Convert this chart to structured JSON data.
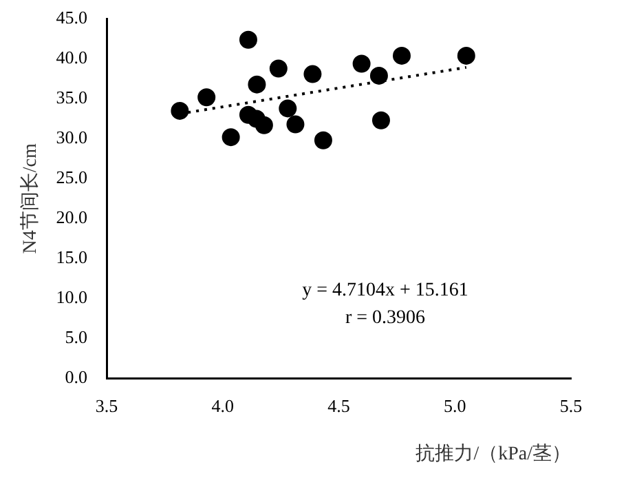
{
  "chart_data": {
    "type": "scatter",
    "xlabel": "抗推力/（kPa/茎）",
    "ylabel": "N4节间长/cm",
    "xlim": [
      3.5,
      5.5
    ],
    "xticks": [
      {
        "value": 3.5,
        "label": "3.5"
      },
      {
        "value": 4,
        "label": "4.0"
      },
      {
        "value": 4.5,
        "label": "4.5"
      },
      {
        "value": 5,
        "label": "5.0"
      },
      {
        "value": 5.5,
        "label": "5.5"
      }
    ],
    "ylim": [
      0,
      45
    ],
    "yticks": [
      {
        "value": 0,
        "label": "0.0"
      },
      {
        "value": 5,
        "label": "5.0"
      },
      {
        "value": 10,
        "label": "10.0"
      },
      {
        "value": 15,
        "label": "15.0"
      },
      {
        "value": 20,
        "label": "20.0"
      },
      {
        "value": 25,
        "label": "25.0"
      },
      {
        "value": 30,
        "label": "30.0"
      },
      {
        "value": 35,
        "label": "35.0"
      },
      {
        "value": 40,
        "label": "40.0"
      },
      {
        "value": 45,
        "label": "45.0"
      }
    ],
    "grid": false,
    "legend": false,
    "marker": "circle",
    "series": [
      {
        "color": "#000000",
        "x": [
          3.815,
          3.93,
          4.035,
          4.11,
          4.11,
          4.147,
          4.145,
          4.178,
          4.24,
          4.28,
          4.313,
          4.387,
          4.433,
          4.598,
          4.673,
          4.682,
          4.771,
          5.049
        ],
        "values": [
          33.5,
          35.2,
          30.2,
          42.4,
          33.0,
          36.8,
          32.5,
          31.7,
          38.8,
          33.8,
          31.8,
          38.1,
          29.8,
          39.4,
          37.9,
          32.3,
          40.4,
          40.4
        ]
      },
      {
        "type": "line",
        "color": "#000000",
        "line_style": "dotted",
        "marker": "none",
        "x": [
          3.815,
          5.049
        ],
        "values": [
          33.13,
          38.94
        ]
      }
    ],
    "annotations": [
      "y = 4.7104x + 15.161",
      "r = 0.3906"
    ]
  }
}
